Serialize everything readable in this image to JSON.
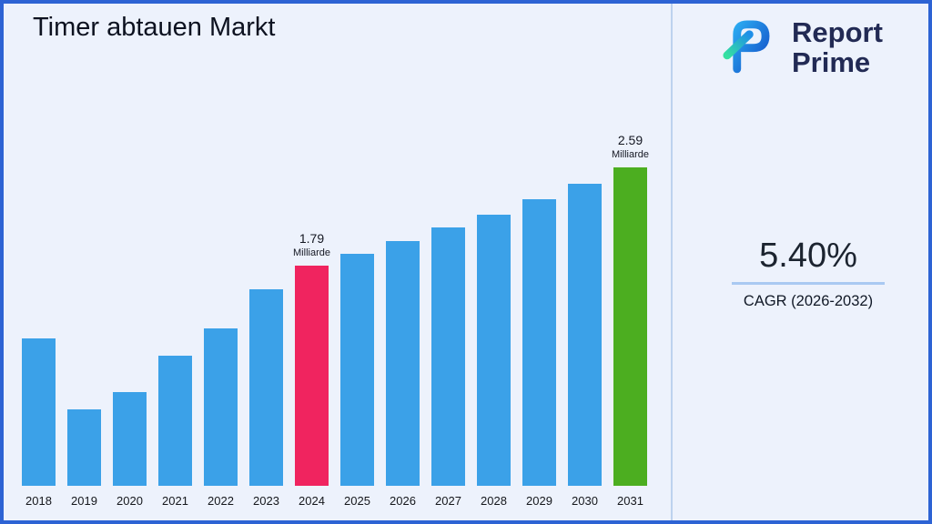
{
  "page": {
    "title": "Timer abtauen Markt"
  },
  "logo": {
    "line1": "Report",
    "line2": "Prime"
  },
  "stats": {
    "cagr_value": "5.40%",
    "cagr_label": "CAGR (2026-2032)"
  },
  "chart_data": {
    "type": "bar",
    "title": "Timer abtauen Markt",
    "categories": [
      "2018",
      "2019",
      "2020",
      "2021",
      "2022",
      "2023",
      "2024",
      "2025",
      "2026",
      "2027",
      "2028",
      "2029",
      "2030",
      "2031"
    ],
    "values": [
      1.2,
      0.62,
      0.76,
      1.06,
      1.28,
      1.6,
      1.79,
      1.89,
      1.99,
      2.1,
      2.21,
      2.33,
      2.46,
      2.59
    ],
    "unit": "Milliarde",
    "xlabel": "",
    "ylabel": "",
    "ylim": [
      0,
      2.85
    ],
    "grid": false,
    "legend": false,
    "bar_color": "#3ba1e8",
    "highlights": [
      {
        "index": 6,
        "category": "2024",
        "color": "#f0245f",
        "label": "1.79",
        "sublabel": "Milliarde"
      },
      {
        "index": 13,
        "category": "2031",
        "color": "#4cae20",
        "label": "2.59",
        "sublabel": "Milliarde"
      }
    ]
  },
  "colors": {
    "background": "#edf2fc",
    "border": "#2d63d4",
    "divider": "#bdd2ee",
    "navy": "#222a54",
    "underline": "#a9c9f2"
  }
}
